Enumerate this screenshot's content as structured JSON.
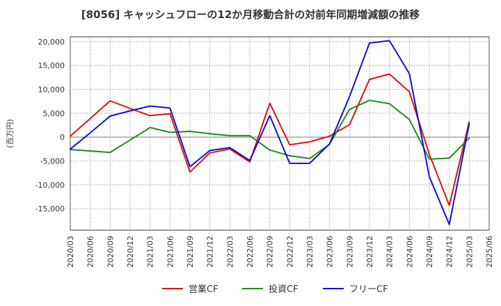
{
  "chart_data": {
    "type": "line",
    "title": "[8056]  キャッシュフローの12か月移動合計の対前年同期増減額の推移",
    "ylabel": "(百万円)",
    "xlabel": "",
    "ylim": [
      -19500,
      21000
    ],
    "yticks": [
      20000,
      15000,
      10000,
      5000,
      0,
      -5000,
      -10000,
      -15000
    ],
    "ytick_labels": [
      "20,000",
      "15,000",
      "10,000",
      "5,000",
      "0",
      "-5,000",
      "-10,000",
      "-15,000"
    ],
    "x_tick_labels": [
      "2020/03",
      "2020/06",
      "2020/09",
      "2020/12",
      "2021/03",
      "2021/06",
      "2021/09",
      "2021/12",
      "2022/03",
      "2022/06",
      "2022/09",
      "2022/12",
      "2023/03",
      "2023/06",
      "2023/09",
      "2023/12",
      "2024/03",
      "2024/06",
      "2024/09",
      "2024/12",
      "2025/03",
      "2025/06"
    ],
    "grid": true,
    "legend_position": "bottom",
    "series": [
      {
        "name": "営業CF",
        "color": "#dd1111",
        "values": [
          200,
          3900,
          7600,
          6000,
          4500,
          4900,
          -7300,
          -3300,
          -2500,
          -5200,
          7100,
          -1600,
          -1000,
          200,
          2600,
          12100,
          13200,
          9500,
          -3600,
          -14300,
          3200,
          null
        ]
      },
      {
        "name": "投資CF",
        "color": "#228822",
        "values": [
          -2600,
          -2900,
          -3200,
          -600,
          2000,
          1000,
          1200,
          700,
          300,
          300,
          -2700,
          -3900,
          -4500,
          -1500,
          5800,
          7700,
          7000,
          3700,
          -4600,
          -4400,
          -200,
          null
        ]
      },
      {
        "name": "フリーCF",
        "color": "#1111cc",
        "values": [
          -2500,
          900,
          4400,
          5500,
          6500,
          6100,
          -6200,
          -2800,
          -2200,
          -4900,
          4500,
          -5500,
          -5500,
          -1400,
          8500,
          19700,
          20200,
          13300,
          -8300,
          -18300,
          2800,
          null
        ]
      }
    ]
  }
}
